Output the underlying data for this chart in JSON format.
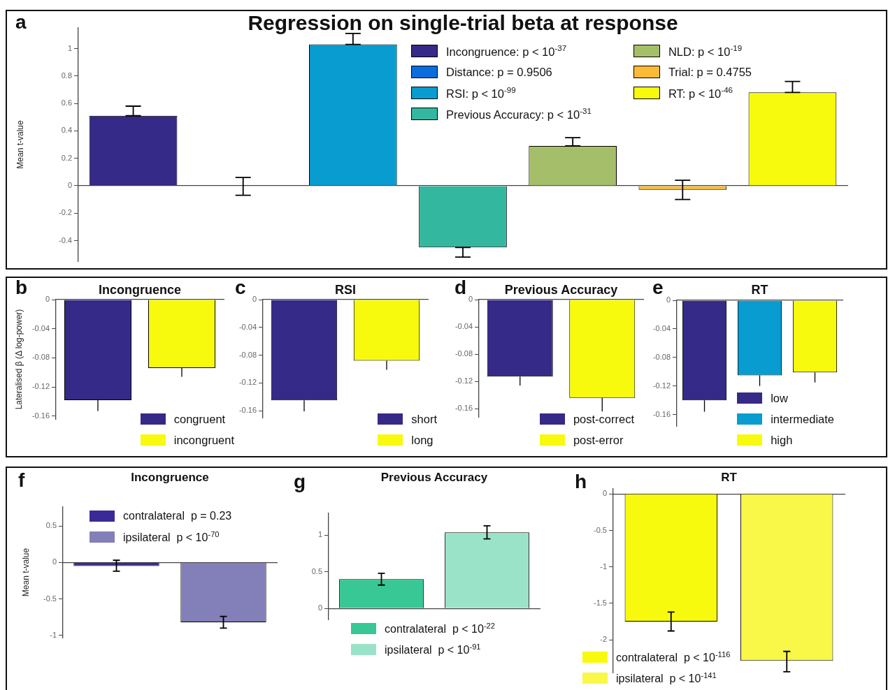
{
  "chart_data": [
    {
      "type": "bar",
      "title": "Regression on single-trial beta at response",
      "ylabel": "Mean t-value",
      "annotations": [
        "a"
      ],
      "categories": [
        null,
        null,
        null,
        null,
        null,
        null,
        null
      ],
      "ylim": [
        -0.55,
        1.15
      ],
      "yticks": [
        -0.4,
        -0.2,
        0,
        0.2,
        0.4,
        0.6,
        0.8,
        1
      ],
      "tick_labels": "y",
      "legend": "top right",
      "series": [
        {
          "name": "Incongruence: p < 10$^{-37}$",
          "color": "#352a87",
          "values": [
            0.51,
            null,
            null,
            null,
            null,
            null,
            null
          ],
          "errors": [
            [
              0.51,
              0.58
            ],
            null,
            null,
            null,
            null,
            null,
            null
          ]
        },
        {
          "name": "Distance: p = 0.9506",
          "color": "#0a6ddb",
          "values": [
            null,
            -0.003,
            null,
            null,
            null,
            null,
            null
          ],
          "errors": [
            null,
            [
              -0.07,
              0.06
            ],
            null,
            null,
            null,
            null,
            null
          ]
        },
        {
          "name": "RSI: p < 10$^{-99}$",
          "color": "#089cd0",
          "values": [
            null,
            null,
            1.03,
            null,
            null,
            null,
            null
          ],
          "errors": [
            null,
            null,
            [
              1.03,
              1.11
            ],
            null,
            null,
            null,
            null
          ]
        },
        {
          "name": "Previous Accuracy: p < 10$^{-31}$",
          "color": "#33b89f",
          "values": [
            null,
            null,
            null,
            -0.45,
            null,
            null,
            null
          ],
          "errors": [
            null,
            null,
            null,
            [
              -0.52,
              -0.45
            ],
            null,
            null,
            null
          ]
        },
        {
          "name": "NLD: p < 10$^{-19}$",
          "color": "#a5be6a",
          "values": [
            null,
            null,
            null,
            null,
            0.29,
            null,
            null
          ],
          "errors": [
            null,
            null,
            null,
            null,
            [
              0.29,
              0.35
            ],
            null,
            null
          ]
        },
        {
          "name": "Trial: p = 0.4755",
          "color": "#fbba38",
          "values": [
            null,
            null,
            null,
            null,
            null,
            -0.03,
            null
          ],
          "errors": [
            null,
            null,
            null,
            null,
            null,
            [
              -0.1,
              0.04
            ],
            null
          ]
        },
        {
          "name": "RT: p < 10$^{-46}$",
          "color": "#f8fa0d",
          "values": [
            null,
            null,
            null,
            null,
            null,
            null,
            0.68
          ],
          "errors": [
            null,
            null,
            null,
            null,
            null,
            null,
            [
              0.68,
              0.76
            ]
          ]
        }
      ]
    },
    {
      "type": "bar",
      "title": "Incongruence",
      "ylabel": "Lateralised β (Δ log-power)",
      "annotations": [
        "b"
      ],
      "categories": [
        null,
        null
      ],
      "ylim": [
        -0.164,
        0
      ],
      "yticks": [
        -0.16,
        -0.12,
        -0.08,
        -0.04,
        0
      ],
      "tick_labels": "y",
      "legend": "bottom right",
      "series": [
        {
          "name": "congruent",
          "color": "#352a87",
          "values": [
            -0.138,
            null
          ],
          "errors": [
            [
              -0.153,
              -0.138
            ],
            null
          ]
        },
        {
          "name": "incongruent",
          "color": "#f8fa0d",
          "values": [
            null,
            -0.094
          ],
          "errors": [
            null,
            [
              -0.106,
              -0.094
            ]
          ]
        }
      ]
    },
    {
      "type": "bar",
      "title": "RSI",
      "annotations": [
        "c"
      ],
      "categories": [
        null,
        null
      ],
      "ylim": [
        -0.17,
        0
      ],
      "yticks": [
        -0.16,
        -0.12,
        -0.08,
        -0.04,
        0
      ],
      "tick_labels": "y",
      "legend": "bottom right",
      "series": [
        {
          "name": "short",
          "color": "#352a87",
          "values": [
            -0.145,
            null
          ],
          "errors": [
            [
              -0.161,
              -0.145
            ],
            null
          ]
        },
        {
          "name": "long",
          "color": "#f8fa0d",
          "values": [
            null,
            -0.088
          ],
          "errors": [
            null,
            [
              -0.101,
              -0.088
            ]
          ]
        }
      ]
    },
    {
      "type": "bar",
      "title": "Previous Accuracy",
      "annotations": [
        "d"
      ],
      "categories": [
        null,
        null
      ],
      "ylim": [
        -0.172,
        0
      ],
      "yticks": [
        -0.16,
        -0.12,
        -0.08,
        -0.04,
        0
      ],
      "tick_labels": "y",
      "legend": "bottom right",
      "series": [
        {
          "name": "post-correct",
          "color": "#352a87",
          "values": [
            -0.113,
            null
          ],
          "errors": [
            [
              -0.126,
              -0.113
            ],
            null
          ]
        },
        {
          "name": "post-error",
          "color": "#f8fa0d",
          "values": [
            null,
            -0.144
          ],
          "errors": [
            null,
            [
              -0.164,
              -0.144
            ]
          ]
        }
      ]
    },
    {
      "type": "bar",
      "title": "RT",
      "annotations": [
        "e"
      ],
      "categories": [
        null,
        null,
        null
      ],
      "ylim": [
        -0.176,
        0
      ],
      "yticks": [
        -0.16,
        -0.12,
        -0.08,
        -0.04,
        0
      ],
      "tick_labels": "y",
      "legend": "bottom right",
      "series": [
        {
          "name": "low",
          "color": "#352a87",
          "values": [
            -0.14,
            null,
            null
          ],
          "errors": [
            [
              -0.156,
              -0.14
            ],
            null,
            null
          ]
        },
        {
          "name": "intermediate",
          "color": "#089cd0",
          "values": [
            null,
            -0.105,
            null
          ],
          "errors": [
            null,
            [
              -0.12,
              -0.105
            ],
            null
          ]
        },
        {
          "name": "high",
          "color": "#f8fa0d",
          "values": [
            null,
            null,
            -0.101
          ],
          "errors": [
            null,
            null,
            [
              -0.115,
              -0.101
            ]
          ]
        }
      ]
    },
    {
      "type": "bar",
      "title": "Incongruence",
      "ylabel": "Mean t-value",
      "annotations": [
        "f"
      ],
      "categories": [
        null,
        null
      ],
      "ylim": [
        -1.03,
        0.76
      ],
      "yticks": [
        -1,
        -0.5,
        0,
        0.5
      ],
      "tick_labels": "y",
      "legend": "top left",
      "series": [
        {
          "name": "contralateral  p = 0.23",
          "color": "#3a2a98",
          "values": [
            -0.05,
            null
          ],
          "errors": [
            [
              -0.12,
              0.03
            ],
            null
          ]
        },
        {
          "name": "ipsilateral  p < 10$^{-70}$",
          "color": "#837fb8",
          "values": [
            null,
            -0.82
          ],
          "errors": [
            null,
            [
              -0.9,
              -0.74
            ]
          ]
        }
      ]
    },
    {
      "type": "bar",
      "title": "Previous Accuracy",
      "annotations": [
        "g"
      ],
      "categories": [
        null,
        null
      ],
      "ylim": [
        -0.15,
        1.3
      ],
      "yticks": [
        0,
        0.5,
        1
      ],
      "tick_labels": "y",
      "legend": "bottom",
      "series": [
        {
          "name": "contralateral  p < 10$^{-22}$",
          "color": "#37c895",
          "values": [
            0.4,
            null
          ],
          "errors": [
            [
              0.32,
              0.48
            ],
            null
          ]
        },
        {
          "name": "ipsilateral  p < 10$^{-91}$",
          "color": "#9be3c8",
          "values": [
            null,
            1.04
          ],
          "errors": [
            null,
            [
              0.95,
              1.13
            ]
          ]
        }
      ]
    },
    {
      "type": "bar",
      "title": "RT",
      "annotations": [
        "h"
      ],
      "categories": [
        null,
        null
      ],
      "ylim": [
        -2.45,
        0.07
      ],
      "yticks": [
        -2,
        -1.5,
        -1,
        -0.5,
        0
      ],
      "tick_labels": "y",
      "legend": "bottom left",
      "series": [
        {
          "name": "contralateral  p < 10$^{-116}$",
          "color": "#f8fa0d",
          "values": [
            -1.75,
            null
          ],
          "errors": [
            [
              -1.88,
              -1.62
            ],
            null
          ]
        },
        {
          "name": "ipsilateral  p < 10$^{-141}$",
          "color": "#f9f748",
          "values": [
            null,
            -2.29
          ],
          "errors": [
            null,
            [
              -2.44,
              -2.16
            ]
          ]
        }
      ]
    }
  ]
}
